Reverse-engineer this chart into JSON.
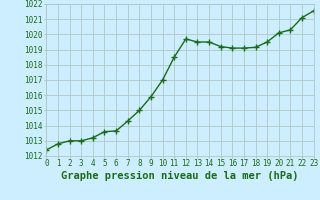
{
  "x": [
    0,
    1,
    2,
    3,
    4,
    5,
    6,
    7,
    8,
    9,
    10,
    11,
    12,
    13,
    14,
    15,
    16,
    17,
    18,
    19,
    20,
    21,
    22,
    23
  ],
  "y": [
    1012.4,
    1012.8,
    1013.0,
    1013.0,
    1013.2,
    1013.6,
    1013.65,
    1014.3,
    1015.0,
    1015.9,
    1017.0,
    1018.5,
    1019.7,
    1019.5,
    1019.5,
    1019.2,
    1019.1,
    1019.1,
    1019.15,
    1019.5,
    1020.1,
    1020.3,
    1021.1,
    1021.55
  ],
  "xlim": [
    0,
    23
  ],
  "ylim": [
    1012,
    1022
  ],
  "yticks": [
    1012,
    1013,
    1014,
    1015,
    1016,
    1017,
    1018,
    1019,
    1020,
    1021,
    1022
  ],
  "xticks": [
    0,
    1,
    2,
    3,
    4,
    5,
    6,
    7,
    8,
    9,
    10,
    11,
    12,
    13,
    14,
    15,
    16,
    17,
    18,
    19,
    20,
    21,
    22,
    23
  ],
  "xlabel": "Graphe pression niveau de la mer (hPa)",
  "line_color": "#1a6b1a",
  "marker": "+",
  "marker_size": 4,
  "line_width": 1.0,
  "bg_color": "#cceeff",
  "grid_color": "#b0c8c8",
  "tick_label_fontsize": 5.5,
  "xlabel_fontsize": 7.5
}
